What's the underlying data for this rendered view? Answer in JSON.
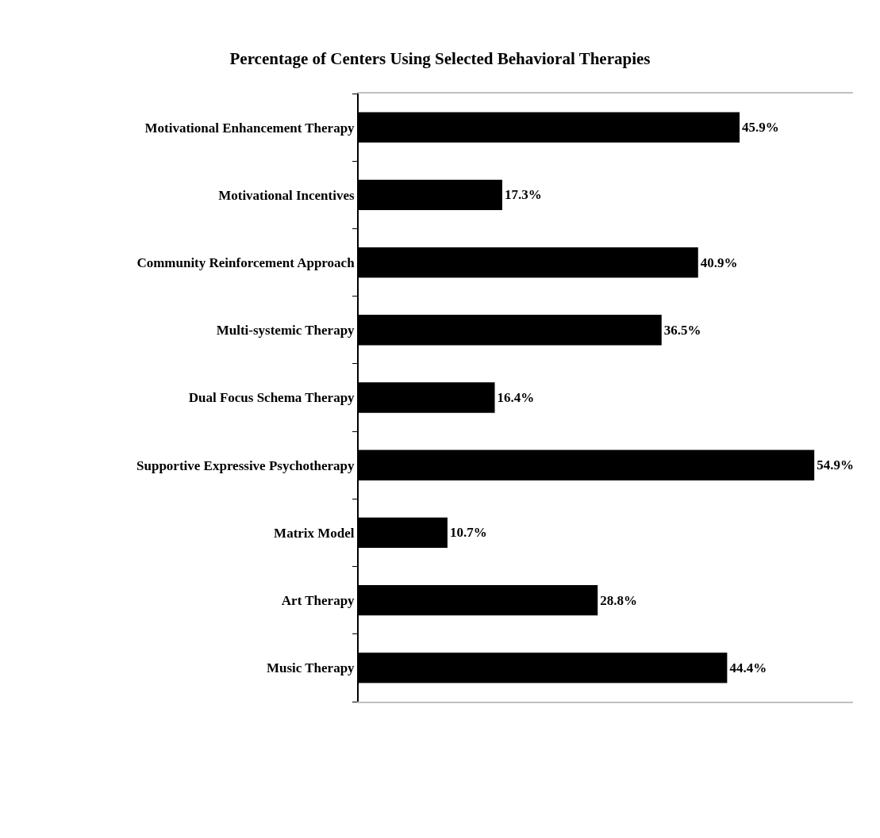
{
  "chart_data": {
    "type": "bar",
    "orientation": "horizontal",
    "title": "Percentage of Centers Using Selected Behavioral Therapies",
    "categories": [
      "Motivational Enhancement Therapy",
      "Motivational Incentives",
      "Community Reinforcement Approach",
      "Multi-systemic Therapy",
      "Dual Focus Schema Therapy",
      "Supportive Expressive Psychotherapy",
      "Matrix Model",
      "Art Therapy",
      "Music Therapy"
    ],
    "values": [
      45.9,
      17.3,
      40.9,
      36.5,
      16.4,
      54.9,
      10.7,
      28.8,
      44.4
    ],
    "value_labels": [
      "45.9%",
      "17.3%",
      "40.9%",
      "36.5%",
      "16.4%",
      "54.9%",
      "10.7%",
      "28.8%",
      "44.4%"
    ],
    "color": "#000000"
  }
}
